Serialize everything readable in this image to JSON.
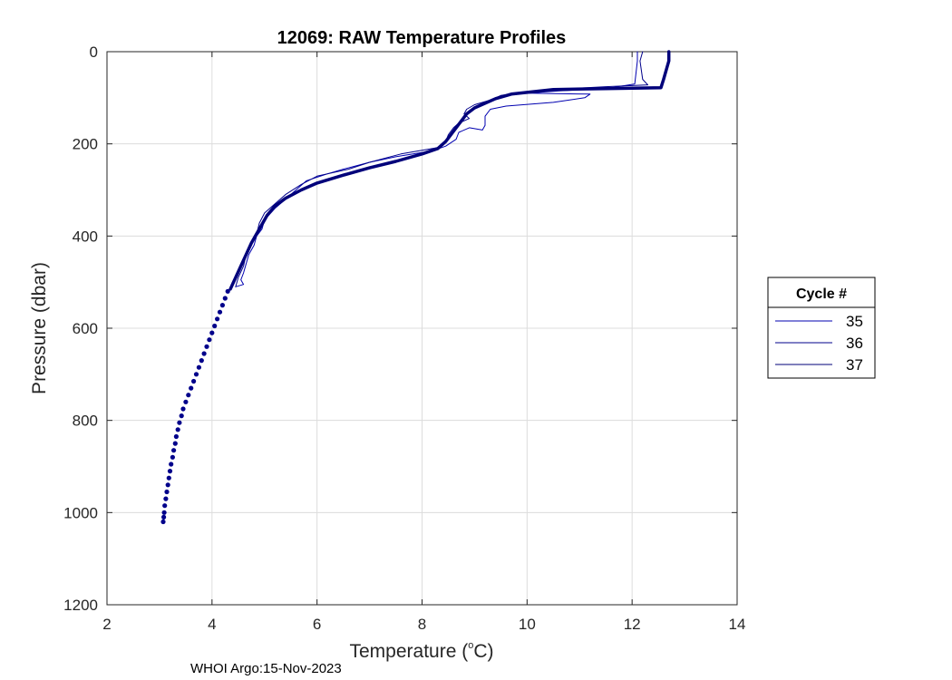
{
  "chart_data": {
    "type": "line",
    "title": "12069: RAW Temperature Profiles",
    "xlabel": "Temperature (",
    "xlabel_deg": "o",
    "xlabel_unit": "C)",
    "ylabel": "Pressure (dbar)",
    "xlim": [
      2,
      14
    ],
    "ylim": [
      0,
      1200
    ],
    "y_reversed": true,
    "grid": true,
    "x_ticks": [
      "2",
      "4",
      "6",
      "8",
      "10",
      "12",
      "14"
    ],
    "y_ticks": [
      "0",
      "200",
      "400",
      "600",
      "800",
      "1000",
      "1200"
    ],
    "legend": {
      "title": "Cycle #",
      "placement": "outside-right",
      "entries": [
        "35",
        "36",
        "37"
      ]
    },
    "series": [
      {
        "name": "35",
        "color": "#0000b0",
        "style": "thin",
        "points": [
          [
            12.1,
            0
          ],
          [
            12.1,
            20
          ],
          [
            12.05,
            70
          ],
          [
            11.5,
            80
          ],
          [
            10.6,
            85
          ],
          [
            10,
            90
          ],
          [
            11.2,
            92
          ],
          [
            11.1,
            100
          ],
          [
            10.5,
            110
          ],
          [
            9.6,
            118
          ],
          [
            9.3,
            125
          ],
          [
            9.2,
            140
          ],
          [
            9.2,
            160
          ],
          [
            9.15,
            170
          ],
          [
            8.9,
            165
          ],
          [
            8.7,
            175
          ],
          [
            8.65,
            190
          ],
          [
            8.45,
            205
          ],
          [
            8.2,
            215
          ],
          [
            7.5,
            228
          ],
          [
            7,
            240
          ],
          [
            6.5,
            255
          ],
          [
            6.2,
            265
          ],
          [
            5.8,
            280
          ],
          [
            5.6,
            300
          ],
          [
            5.4,
            320
          ],
          [
            5.2,
            340
          ],
          [
            5.0,
            365
          ],
          [
            4.95,
            385
          ],
          [
            4.85,
            400
          ],
          [
            4.8,
            420
          ],
          [
            4.7,
            440
          ],
          [
            4.65,
            460
          ],
          [
            4.6,
            480
          ],
          [
            4.55,
            495
          ],
          [
            4.6,
            505
          ],
          [
            4.45,
            510
          ]
        ]
      },
      {
        "name": "36",
        "color": "#00008b",
        "style": "thin",
        "points": [
          [
            12.2,
            0
          ],
          [
            12.15,
            20
          ],
          [
            12.2,
            60
          ],
          [
            12.3,
            72
          ],
          [
            11.5,
            76
          ],
          [
            10.5,
            82
          ],
          [
            9.9,
            88
          ],
          [
            9.5,
            95
          ],
          [
            9.3,
            105
          ],
          [
            9.0,
            115
          ],
          [
            8.85,
            125
          ],
          [
            8.8,
            135
          ],
          [
            8.9,
            145
          ],
          [
            8.7,
            155
          ],
          [
            8.6,
            165
          ],
          [
            8.5,
            180
          ],
          [
            8.45,
            195
          ],
          [
            8.3,
            208
          ],
          [
            7.6,
            222
          ],
          [
            7.0,
            240
          ],
          [
            6.6,
            255
          ],
          [
            6.0,
            270
          ],
          [
            5.7,
            288
          ],
          [
            5.4,
            310
          ],
          [
            5.2,
            330
          ],
          [
            5.0,
            350
          ],
          [
            4.9,
            372
          ],
          [
            4.85,
            395
          ],
          [
            4.75,
            415
          ],
          [
            4.65,
            440
          ],
          [
            4.6,
            465
          ],
          [
            4.5,
            490
          ],
          [
            4.45,
            510
          ]
        ]
      },
      {
        "name": "37",
        "color": "#00007a",
        "style": "thick",
        "points": [
          [
            12.7,
            0
          ],
          [
            12.7,
            20
          ],
          [
            12.65,
            40
          ],
          [
            12.6,
            60
          ],
          [
            12.55,
            78
          ],
          [
            11.5,
            80
          ],
          [
            10.5,
            82
          ],
          [
            9.7,
            92
          ],
          [
            9.4,
            102
          ],
          [
            9.2,
            112
          ],
          [
            9.0,
            122
          ],
          [
            8.85,
            135
          ],
          [
            8.75,
            150
          ],
          [
            8.65,
            165
          ],
          [
            8.55,
            180
          ],
          [
            8.45,
            195
          ],
          [
            8.3,
            210
          ],
          [
            8.0,
            222
          ],
          [
            7.5,
            238
          ],
          [
            7.0,
            252
          ],
          [
            6.5,
            268
          ],
          [
            6.0,
            285
          ],
          [
            5.7,
            300
          ],
          [
            5.4,
            318
          ],
          [
            5.2,
            335
          ],
          [
            5.05,
            355
          ],
          [
            4.95,
            375
          ],
          [
            4.85,
            395
          ],
          [
            4.75,
            415
          ],
          [
            4.65,
            440
          ],
          [
            4.55,
            465
          ],
          [
            4.45,
            490
          ],
          [
            4.35,
            515
          ]
        ]
      }
    ],
    "deep_points": [
      [
        4.3,
        520
      ],
      [
        4.25,
        535
      ],
      [
        4.2,
        550
      ],
      [
        4.15,
        565
      ],
      [
        4.1,
        580
      ],
      [
        4.05,
        595
      ],
      [
        4.0,
        610
      ],
      [
        3.95,
        625
      ],
      [
        3.9,
        640
      ],
      [
        3.85,
        655
      ],
      [
        3.8,
        670
      ],
      [
        3.75,
        685
      ],
      [
        3.7,
        700
      ],
      [
        3.65,
        715
      ],
      [
        3.6,
        730
      ],
      [
        3.55,
        745
      ],
      [
        3.5,
        760
      ],
      [
        3.45,
        775
      ],
      [
        3.42,
        790
      ],
      [
        3.38,
        805
      ],
      [
        3.35,
        820
      ],
      [
        3.32,
        835
      ],
      [
        3.3,
        850
      ],
      [
        3.27,
        865
      ],
      [
        3.25,
        880
      ],
      [
        3.22,
        895
      ],
      [
        3.2,
        910
      ],
      [
        3.18,
        925
      ],
      [
        3.16,
        940
      ],
      [
        3.14,
        955
      ],
      [
        3.12,
        970
      ],
      [
        3.1,
        985
      ],
      [
        3.09,
        1000
      ],
      [
        3.08,
        1010
      ],
      [
        3.07,
        1020
      ]
    ]
  },
  "footer": "WHOI Argo:15-Nov-2023"
}
